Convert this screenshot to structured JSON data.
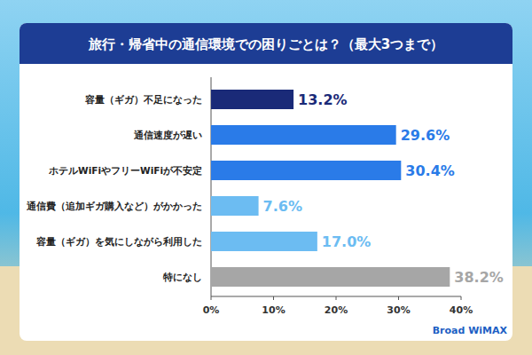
{
  "chart_data": {
    "type": "bar",
    "orientation": "horizontal",
    "title": "旅行・帰省中の通信環境での困りごとは？（最大3つまで）",
    "categories": [
      "容量（ギガ）不足になった",
      "通信速度が遅い",
      "ホテルWiFiやフリーWiFiが不安定",
      "通信費（追加ギガ購入など）がかかった",
      "容量（ギガ）を気にしながら利用した",
      "特になし"
    ],
    "values": [
      13.2,
      29.6,
      30.4,
      7.6,
      17.0,
      38.2
    ],
    "value_labels": [
      "13.2%",
      "29.6%",
      "30.4%",
      "7.6%",
      "17.0%",
      "38.2%"
    ],
    "colors": [
      "#1a2a78",
      "#2a7be8",
      "#2a7be8",
      "#6cbcf2",
      "#6cbcf2",
      "#a6a6a6"
    ],
    "xlim": [
      0,
      40
    ],
    "xticks": [
      {
        "value": 0,
        "label": "0%"
      },
      {
        "value": 10,
        "label": "10%"
      },
      {
        "value": 20,
        "label": "20%"
      },
      {
        "value": 30,
        "label": "30%"
      },
      {
        "value": 40,
        "label": "40%"
      }
    ],
    "grid": false,
    "data_labels": true,
    "annotations": [
      "Broad WiMAX"
    ]
  }
}
